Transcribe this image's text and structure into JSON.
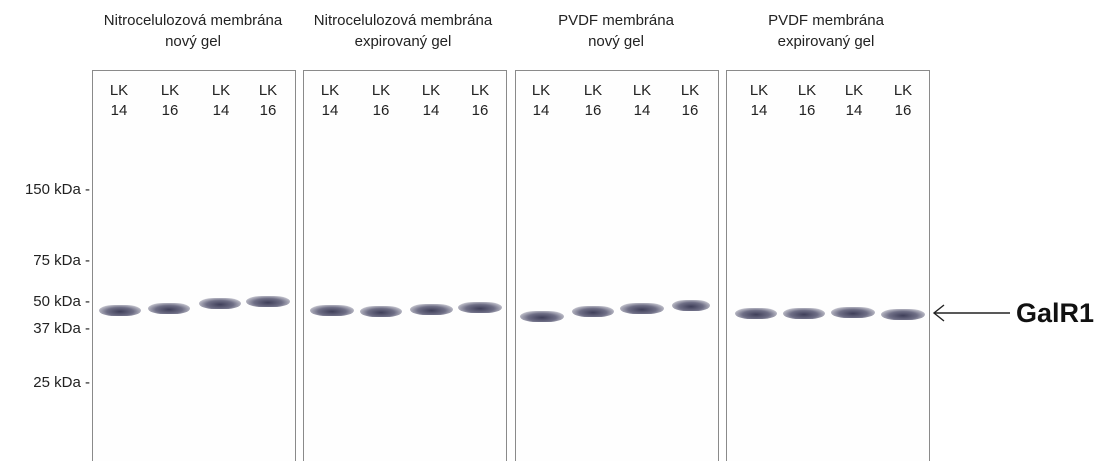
{
  "panels": [
    {
      "title_line1": "Nitrocelulozová membrána",
      "title_line2": "nový gel",
      "lanes": [
        {
          "line1": "LK",
          "line2": "14"
        },
        {
          "line1": "LK",
          "line2": "16"
        },
        {
          "line1": "LK",
          "line2": "14"
        },
        {
          "line1": "LK",
          "line2": "16"
        }
      ]
    },
    {
      "title_line1": "Nitrocelulozová membrána",
      "title_line2": "expirovaný gel",
      "lanes": [
        {
          "line1": "LK",
          "line2": "14"
        },
        {
          "line1": "LK",
          "line2": "16"
        },
        {
          "line1": "LK",
          "line2": "14"
        },
        {
          "line1": "LK",
          "line2": "16"
        }
      ]
    },
    {
      "title_line1": "PVDF membrána",
      "title_line2": "nový gel",
      "lanes": [
        {
          "line1": "LK",
          "line2": "14"
        },
        {
          "line1": "LK",
          "line2": "16"
        },
        {
          "line1": "LK",
          "line2": "14"
        },
        {
          "line1": "LK",
          "line2": "16"
        }
      ]
    },
    {
      "title_line1": "PVDF membrána",
      "title_line2": "expirovaný gel",
      "lanes": [
        {
          "line1": "LK",
          "line2": "14"
        },
        {
          "line1": "LK",
          "line2": "16"
        },
        {
          "line1": "LK",
          "line2": "14"
        },
        {
          "line1": "LK",
          "line2": "16"
        }
      ]
    }
  ],
  "markers": [
    "150 kDa -",
    "75 kDa -",
    "50 kDa -",
    "37 kDa -",
    "25 kDa -"
  ],
  "target_label": "GalR1",
  "colors": {
    "band": "#3a3a5a",
    "border": "#8a8a8a",
    "background": "#ffffff"
  }
}
